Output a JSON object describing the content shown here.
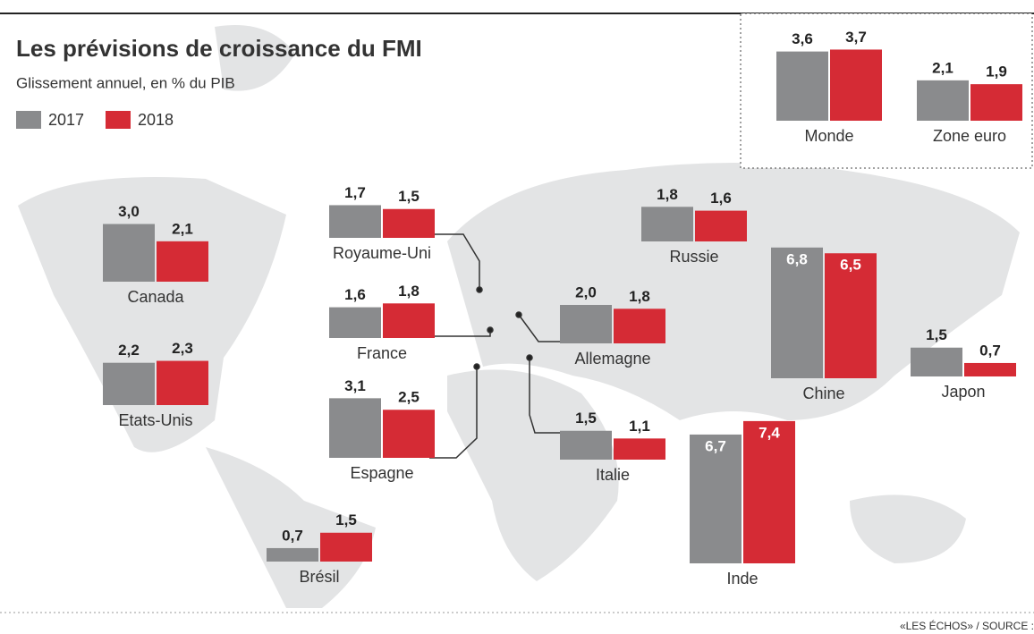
{
  "chart_data": {
    "type": "bar",
    "title": "Les prévisions de croissance du FMI",
    "subtitle": "Glissement annuel, en % du PIB",
    "source": "«LES ÉCHOS» / SOURCE : FMI",
    "categories": [
      "Monde",
      "Zone euro",
      "Canada",
      "Etats-Unis",
      "Royaume-Uni",
      "France",
      "Espagne",
      "Brésil",
      "Russie",
      "Allemagne",
      "Italie",
      "Chine",
      "Japon",
      "Inde"
    ],
    "series": [
      {
        "name": "2017",
        "color": "#8a8b8d",
        "values": [
          3.6,
          2.1,
          3.0,
          2.2,
          1.7,
          1.6,
          3.1,
          0.7,
          1.8,
          2.0,
          1.5,
          6.8,
          1.5,
          6.7
        ],
        "value_labels": [
          "3,6",
          "2,1",
          "3,0",
          "2,2",
          "1,7",
          "1,6",
          "3,1",
          "0,7",
          "1,8",
          "2,0",
          "1,5",
          "6,8",
          "1,5",
          "6,7"
        ]
      },
      {
        "name": "2018",
        "color": "#d52b35",
        "values": [
          3.7,
          1.9,
          2.1,
          2.3,
          1.5,
          1.8,
          2.5,
          1.5,
          1.6,
          1.8,
          1.1,
          6.5,
          0.7,
          7.4
        ],
        "value_labels": [
          "3,7",
          "1,9",
          "2,1",
          "2,3",
          "1,5",
          "1,8",
          "2,5",
          "1,5",
          "1,6",
          "1,8",
          "1,1",
          "6,5",
          "0,7",
          "7,4"
        ]
      }
    ]
  }
}
